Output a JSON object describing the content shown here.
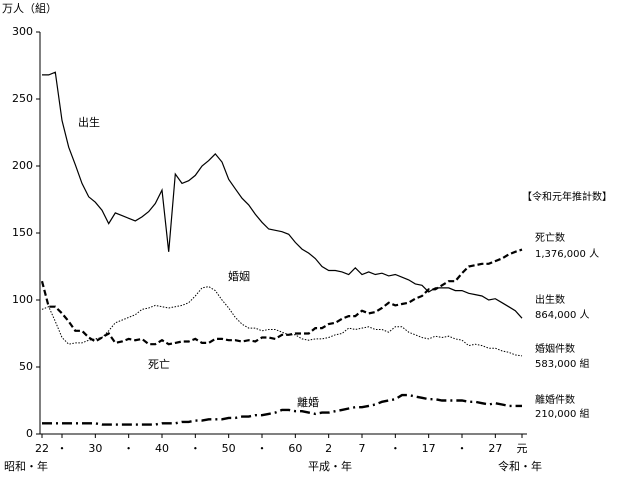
{
  "chart_data": {
    "type": "line",
    "y_label": "万人（組）",
    "categories": [
      "22",
      null,
      null,
      "・",
      null,
      null,
      null,
      null,
      "30",
      null,
      null,
      null,
      null,
      "・",
      null,
      null,
      null,
      null,
      "40",
      null,
      null,
      null,
      null,
      "・",
      null,
      null,
      null,
      null,
      "50",
      null,
      null,
      null,
      null,
      "・",
      null,
      null,
      null,
      null,
      "60",
      null,
      null,
      null,
      null,
      "2",
      null,
      null,
      null,
      null,
      "7",
      null,
      null,
      null,
      null,
      "・",
      null,
      null,
      null,
      null,
      "17",
      null,
      null,
      null,
      null,
      "・",
      null,
      null,
      null,
      null,
      "27",
      null,
      null,
      null,
      "元"
    ],
    "eras": [
      "昭和・年",
      "平成・年",
      "令和・年"
    ],
    "ylim": [
      0,
      300
    ],
    "yticks": [
      0,
      50,
      100,
      150,
      200,
      250,
      300
    ],
    "grid": false,
    "series": [
      {
        "name": "出生",
        "color": "#000000",
        "style": "solid",
        "values": [
          268,
          268,
          270,
          234,
          214,
          201,
          187,
          177,
          173,
          167,
          157,
          165,
          163,
          161,
          159,
          162,
          166,
          172,
          182,
          136,
          194,
          187,
          189,
          193,
          200,
          204,
          209,
          203,
          190,
          183,
          176,
          171,
          164,
          158,
          153,
          152,
          151,
          149,
          143,
          138,
          135,
          131,
          125,
          122,
          122,
          121,
          119,
          124,
          119,
          121,
          119,
          120,
          118,
          119,
          117,
          115,
          112,
          111,
          106,
          109,
          109,
          109,
          107,
          107,
          105,
          104,
          103,
          100,
          101,
          98,
          95,
          92,
          86.4
        ]
      },
      {
        "name": "死亡",
        "color": "#000000",
        "style": "dashed",
        "values": [
          114,
          95,
          95,
          90,
          84,
          77,
          77,
          72,
          69,
          72,
          75,
          68,
          69,
          71,
          70,
          71,
          67,
          67,
          70,
          67,
          68,
          69,
          69,
          71,
          68,
          68,
          71,
          71,
          70,
          70,
          69,
          70,
          69,
          72,
          72,
          71,
          74,
          74,
          75,
          75,
          75,
          79,
          79,
          82,
          83,
          86,
          88,
          88,
          92,
          90,
          91,
          94,
          98,
          96,
          97,
          98,
          101,
          103,
          108,
          108,
          111,
          114,
          114,
          120,
          125,
          126,
          127,
          127,
          129,
          131,
          134,
          136,
          137.6
        ]
      },
      {
        "name": "婚姻",
        "color": "#000000",
        "style": "dotted",
        "values": [
          93,
          95,
          84,
          72,
          67,
          68,
          68,
          70,
          71,
          72,
          77,
          83,
          85,
          87,
          89,
          93,
          94,
          96,
          95,
          94,
          95,
          96,
          98,
          103,
          109,
          110,
          107,
          100,
          94,
          87,
          82,
          79,
          79,
          77,
          78,
          78,
          76,
          74,
          74,
          71,
          70,
          71,
          71,
          72,
          74,
          75,
          79,
          78,
          79,
          80,
          78,
          78,
          76,
          80,
          80,
          76,
          74,
          72,
          71,
          73,
          72,
          73,
          71,
          70,
          66,
          67,
          66,
          64,
          64,
          62,
          61,
          59,
          58.3
        ]
      },
      {
        "name": "離婚",
        "color": "#000000",
        "style": "dashdot",
        "values": [
          8,
          8,
          8,
          8,
          8,
          8,
          8,
          8,
          8,
          7,
          7,
          7,
          7,
          7,
          7,
          7,
          7,
          7,
          8,
          8,
          8,
          9,
          9,
          10,
          10,
          11,
          11,
          11,
          12,
          12,
          13,
          13,
          14,
          14,
          15,
          16,
          18,
          18,
          17,
          17,
          16,
          15,
          16,
          16,
          17,
          18,
          19,
          20,
          20,
          21,
          22,
          24,
          25,
          26,
          29,
          29,
          28,
          27,
          26,
          26,
          25,
          25,
          25,
          25,
          24,
          24,
          23,
          22,
          23,
          22,
          21,
          21,
          21
        ]
      }
    ],
    "side_notes": [
      "【令和元年推計数】",
      "死亡数",
      "1,376,000 人",
      "出生数",
      "864,000 人",
      "婚姻件数",
      "583,000 組",
      "離婚件数",
      "210,000 組"
    ]
  }
}
